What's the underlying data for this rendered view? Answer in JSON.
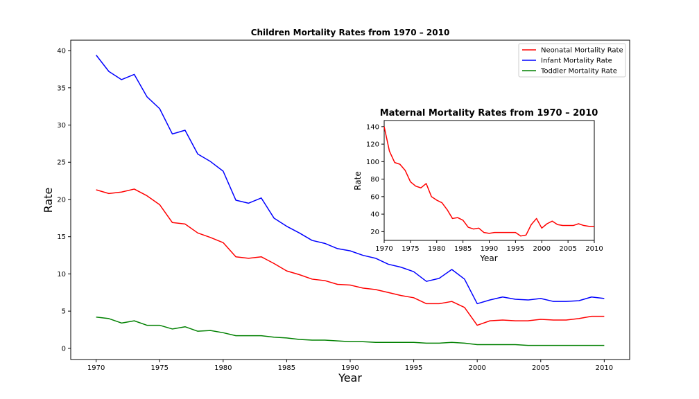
{
  "chart_data": [
    {
      "type": "line",
      "title": "Children Mortality Rates from 1970 – 2010",
      "xlabel": "Year",
      "ylabel": "Rate",
      "xlim": [
        1968,
        2012
      ],
      "ylim": [
        -1.5,
        41.4
      ],
      "xticks": [
        1970,
        1975,
        1980,
        1985,
        1990,
        1995,
        2000,
        2005,
        2010
      ],
      "yticks": [
        0,
        5,
        10,
        15,
        20,
        25,
        30,
        35,
        40
      ],
      "grid": false,
      "legend_position": "upper right",
      "x": [
        1970,
        1971,
        1972,
        1973,
        1974,
        1975,
        1976,
        1977,
        1978,
        1979,
        1980,
        1981,
        1982,
        1983,
        1984,
        1985,
        1986,
        1987,
        1988,
        1989,
        1990,
        1991,
        1992,
        1993,
        1994,
        1995,
        1996,
        1997,
        1998,
        1999,
        2000,
        2001,
        2002,
        2003,
        2004,
        2005,
        2006,
        2007,
        2008,
        2009,
        2010
      ],
      "series": [
        {
          "name": "Neonatal Mortality Rate",
          "color": "#ff0000",
          "values": [
            21.3,
            20.8,
            21.0,
            21.4,
            20.5,
            19.3,
            16.9,
            16.7,
            15.5,
            14.9,
            14.2,
            12.3,
            12.1,
            12.3,
            11.4,
            10.4,
            9.9,
            9.3,
            9.1,
            8.6,
            8.5,
            8.1,
            7.9,
            7.5,
            7.1,
            6.8,
            6.0,
            6.0,
            6.3,
            5.5,
            3.1,
            3.7,
            3.8,
            3.7,
            3.7,
            3.9,
            3.8,
            3.8,
            4.0,
            4.3,
            4.3
          ]
        },
        {
          "name": "Infant Mortality Rate",
          "color": "#0000ff",
          "values": [
            39.4,
            37.2,
            36.1,
            36.8,
            33.8,
            32.2,
            28.8,
            29.3,
            26.1,
            25.1,
            23.8,
            19.9,
            19.5,
            20.2,
            17.5,
            16.4,
            15.5,
            14.5,
            14.1,
            13.4,
            13.1,
            12.5,
            12.1,
            11.3,
            10.9,
            10.3,
            9.0,
            9.4,
            10.6,
            9.3,
            6.0,
            6.5,
            6.9,
            6.6,
            6.5,
            6.7,
            6.3,
            6.3,
            6.4,
            6.9,
            6.7
          ]
        },
        {
          "name": "Toddler Mortality Rate",
          "color": "#008000",
          "values": [
            4.2,
            4.0,
            3.4,
            3.7,
            3.1,
            3.1,
            2.6,
            2.9,
            2.3,
            2.4,
            2.1,
            1.7,
            1.7,
            1.7,
            1.5,
            1.4,
            1.2,
            1.1,
            1.1,
            1.0,
            0.9,
            0.9,
            0.8,
            0.8,
            0.8,
            0.8,
            0.7,
            0.7,
            0.8,
            0.7,
            0.5,
            0.5,
            0.5,
            0.5,
            0.4,
            0.4,
            0.4,
            0.4,
            0.4,
            0.4,
            0.4
          ]
        }
      ]
    },
    {
      "type": "line",
      "title": "Maternal Mortality Rates from 1970 – 2010",
      "xlabel": "Year",
      "ylabel": "Rate",
      "xlim": [
        1970,
        2010
      ],
      "ylim": [
        10,
        147
      ],
      "xticks": [
        1970,
        1975,
        1980,
        1985,
        1990,
        1995,
        2000,
        2005,
        2010
      ],
      "yticks": [
        20,
        40,
        60,
        80,
        100,
        120,
        140
      ],
      "grid": false,
      "x": [
        1970,
        1971,
        1972,
        1973,
        1974,
        1975,
        1976,
        1977,
        1978,
        1979,
        1980,
        1981,
        1982,
        1983,
        1984,
        1985,
        1986,
        1987,
        1988,
        1989,
        1990,
        1991,
        1992,
        1993,
        1994,
        1995,
        1996,
        1997,
        1998,
        1999,
        2000,
        2001,
        2002,
        2003,
        2004,
        2005,
        2006,
        2007,
        2008,
        2009,
        2010
      ],
      "series": [
        {
          "color": "#ff0000",
          "values": [
            140,
            112,
            99,
            97,
            90,
            77,
            72,
            70,
            75,
            60,
            56,
            53,
            45,
            35,
            36,
            33,
            25,
            23,
            24,
            19,
            18,
            19,
            19,
            19,
            19,
            19,
            15,
            16,
            28,
            35,
            24,
            29,
            32,
            28,
            27,
            27,
            27,
            29,
            27,
            26,
            26
          ]
        }
      ]
    }
  ]
}
